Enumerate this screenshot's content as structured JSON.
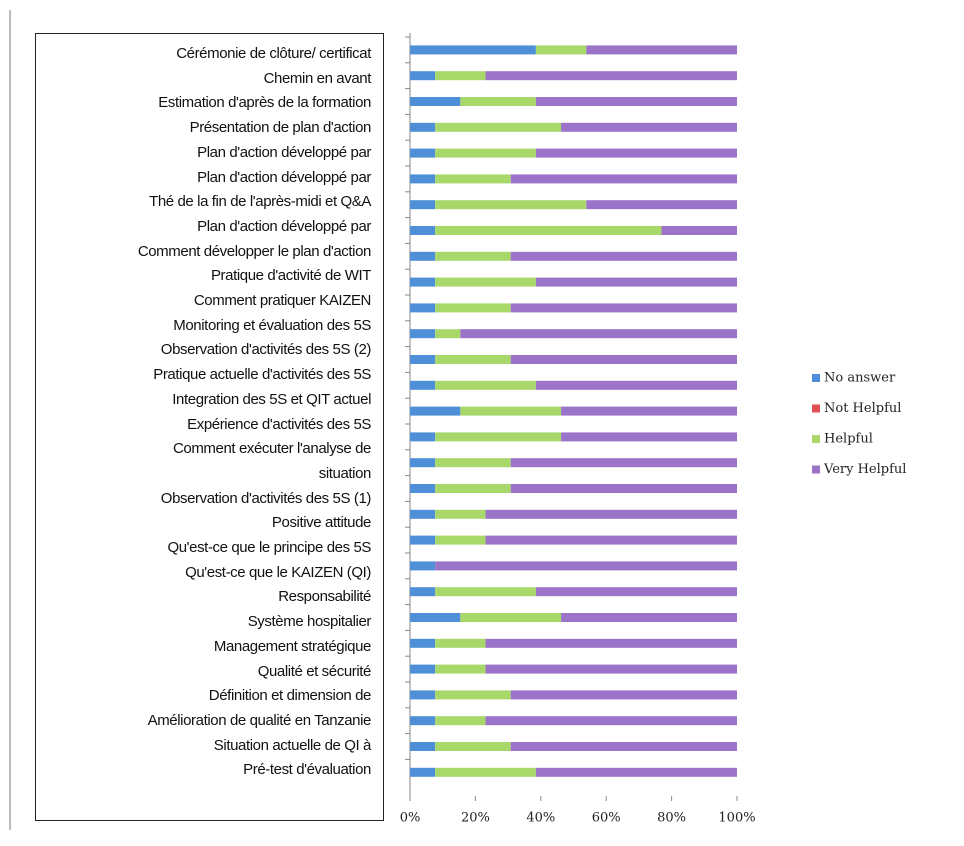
{
  "chart_data": {
    "type": "stacked_barh",
    "categories": [
      "Cérémonie de clôture/ certificat",
      "Chemin en avant",
      "Estimation d'après de la formation",
      "Présentation de plan d'action",
      "Plan d'action développé par",
      "Plan d'action développé par",
      "Thé de la fin de l'après-midi et Q&A",
      "Plan d'action développé par",
      "Comment développer le plan d'action",
      "Pratique d'activité de WIT",
      "Comment pratiquer KAIZEN",
      "Monitoring et évaluation des 5S",
      "Observation d'activités des 5S (2)",
      "Pratique actuelle d'activités des 5S",
      "Integration des 5S et QIT actuel",
      "Expérience d'activités des 5S",
      "Comment exécuter l'analyse de\nsituation",
      "Observation d'activités des 5S (1)",
      "Positive attitude",
      "Qu'est-ce que le principe des 5S",
      "Qu'est-ce que le KAIZEN (QI)",
      "Responsabilité",
      "Système hospitalier",
      "Management stratégique",
      "Qualité et sécurité",
      "Définition et dimension de",
      "Amélioration de qualité en Tanzanie",
      "Situation actuelle  de QI à",
      "Pré-test d'évaluation"
    ],
    "series": [
      {
        "name": "No answer",
        "color": "#4f8fd8",
        "values": [
          38.5,
          7.7,
          15.4,
          7.7,
          7.7,
          7.7,
          7.7,
          7.7,
          7.7,
          7.7,
          7.7,
          7.7,
          7.7,
          7.7,
          15.4,
          7.7,
          7.7,
          7.7,
          7.7,
          7.7,
          7.7,
          7.7,
          15.4,
          7.7,
          7.7,
          7.7,
          7.7,
          7.7,
          7.7
        ]
      },
      {
        "name": "Not Helpful",
        "color": "#e05252",
        "values": [
          0,
          0,
          0,
          0,
          0,
          0,
          0,
          0,
          0,
          0,
          0,
          0,
          0,
          0,
          0,
          0,
          0,
          0,
          0,
          0,
          0,
          0,
          0,
          0,
          0,
          0,
          0,
          0,
          0
        ]
      },
      {
        "name": "Helpful",
        "color": "#a8d86a",
        "values": [
          15.4,
          15.4,
          23.1,
          38.5,
          30.8,
          23.1,
          46.2,
          69.2,
          23.1,
          30.8,
          23.1,
          7.7,
          23.1,
          30.8,
          30.8,
          38.5,
          23.1,
          23.1,
          15.4,
          15.4,
          0,
          30.8,
          30.8,
          15.4,
          15.4,
          23.1,
          15.4,
          23.1,
          30.8
        ]
      },
      {
        "name": "Very Helpful",
        "color": "#9b74c9",
        "values": [
          46.1,
          76.9,
          61.5,
          53.8,
          61.5,
          69.2,
          46.1,
          23.1,
          69.2,
          61.5,
          69.2,
          84.6,
          69.2,
          61.5,
          53.8,
          53.8,
          69.2,
          69.2,
          76.9,
          76.9,
          92.3,
          61.5,
          53.8,
          76.9,
          76.9,
          69.2,
          76.9,
          69.2,
          61.5
        ]
      }
    ],
    "xlim": [
      0,
      100
    ],
    "xticks": [
      {
        "value": 0,
        "label": "0%"
      },
      {
        "value": 20,
        "label": "20%"
      },
      {
        "value": 40,
        "label": "40%"
      },
      {
        "value": 60,
        "label": "60%"
      },
      {
        "value": 80,
        "label": "80%"
      },
      {
        "value": 100,
        "label": "100%"
      }
    ],
    "legend": "right"
  }
}
